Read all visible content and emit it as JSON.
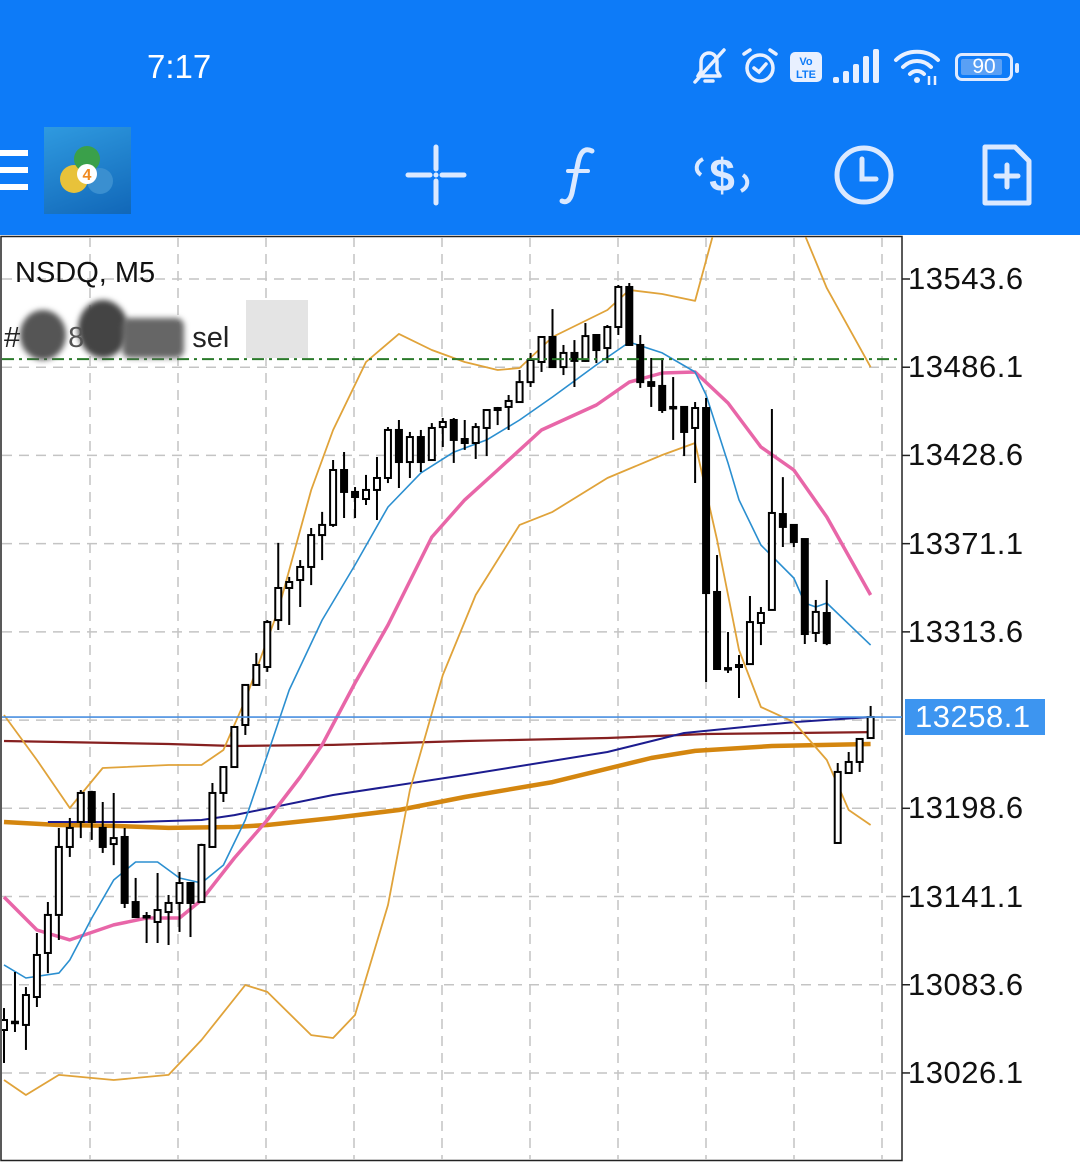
{
  "status_bar": {
    "time": "7:17",
    "icons": [
      "bell-off-icon",
      "alarm-icon",
      "volte-icon",
      "signal-icon",
      "wifi-icon"
    ],
    "battery": "90"
  },
  "toolbar": {
    "icons": [
      "menu-icon",
      "mt4-logo",
      "crosshair-icon",
      "indicators-f-icon",
      "trade-icon",
      "timeframe-clock-icon",
      "new-order-icon"
    ],
    "color": "#0d7bf8"
  },
  "chart": {
    "symbol_label": "NSDQ, M5",
    "order_label": {
      "hash": "#",
      "digit": "8",
      "type": "sel"
    }
  },
  "chart_data": {
    "type": "candlestick",
    "symbol": "NSDQ",
    "timeframe": "M5",
    "y_ticks": [
      "13543.6",
      "13486.1",
      "13428.6",
      "13371.1",
      "13313.6",
      "13198.6",
      "13141.1",
      "13083.6",
      "13026.1"
    ],
    "current_price": "13258.1",
    "order_line_price": 13491.4,
    "grid": true,
    "colors": {
      "bollinger": "#e0a33a",
      "ma_fast": "#2b8fd0",
      "ma_pink": "#e866a8",
      "ma_navy": "#1c1c8f",
      "ma_darkred": "#862020",
      "ma_orange": "#d4860f",
      "price_line": "#4a8fe0",
      "order_line": "#2a7a2a",
      "price_badge": "#3d95f0"
    },
    "candles": [
      [
        13054.1,
        13068.4,
        13032.6,
        13060.6
      ],
      [
        13058.7,
        13091.9,
        13052.8,
        13059.5
      ],
      [
        13057.4,
        13082.1,
        13041.1,
        13076.9
      ],
      [
        13075.6,
        13117.3,
        13069.1,
        13103.0
      ],
      [
        13104.3,
        13137.5,
        13091.2,
        13129.1
      ],
      [
        13129.1,
        13185.8,
        13112.8,
        13173.4
      ],
      [
        13173.4,
        13192.3,
        13166.9,
        13185.8
      ],
      [
        13189.7,
        13210.5,
        13179.2,
        13208.6
      ],
      [
        13209.2,
        13210.0,
        13178.0,
        13189.7
      ],
      [
        13185.8,
        13202.7,
        13169.5,
        13173.4
      ],
      [
        13175.3,
        13208.6,
        13161.6,
        13179.2
      ],
      [
        13179.9,
        13185.8,
        13133.6,
        13136.9
      ],
      [
        13137.5,
        13153.2,
        13127.1,
        13127.7
      ],
      [
        13127.7,
        13131.0,
        13110.8,
        13128.4
      ],
      [
        13124.5,
        13156.4,
        13110.8,
        13132.3
      ],
      [
        13131.0,
        13142.1,
        13109.5,
        13136.9
      ],
      [
        13136.9,
        13157.1,
        13118.0,
        13149.9
      ],
      [
        13149.9,
        13150.5,
        13114.7,
        13136.9
      ],
      [
        13137.5,
        13175.5,
        13137.0,
        13174.7
      ],
      [
        13173.4,
        13215.1,
        13172.7,
        13208.6
      ],
      [
        13208.6,
        13226.0,
        13202.7,
        13225.5
      ],
      [
        13225.5,
        13252.0,
        13225.0,
        13251.6
      ],
      [
        13252.9,
        13279.5,
        13246.4,
        13279.0
      ],
      [
        13279.0,
        13299.8,
        13278.5,
        13292.0
      ],
      [
        13290.7,
        13321.3,
        13287.5,
        13320.0
      ],
      [
        13321.3,
        13371.6,
        13314.8,
        13342.2
      ],
      [
        13342.2,
        13349.4,
        13318.1,
        13346.1
      ],
      [
        13347.4,
        13360.4,
        13329.8,
        13355.9
      ],
      [
        13355.9,
        13381.3,
        13344.1,
        13376.7
      ],
      [
        13376.7,
        13391.8,
        13360.4,
        13383.3
      ],
      [
        13383.3,
        13425.6,
        13382.0,
        13419.1
      ],
      [
        13419.1,
        13430.8,
        13387.8,
        13404.8
      ],
      [
        13404.8,
        13408.0,
        13387.8,
        13401.5
      ],
      [
        13400.2,
        13415.9,
        13396.3,
        13406.1
      ],
      [
        13406.1,
        13427.6,
        13386.5,
        13413.9
      ],
      [
        13413.9,
        13447.1,
        13410.6,
        13445.2
      ],
      [
        13445.2,
        13451.7,
        13407.4,
        13424.3
      ],
      [
        13424.3,
        13443.9,
        13413.9,
        13440.6
      ],
      [
        13440.6,
        13445.2,
        13417.8,
        13424.3
      ],
      [
        13425.6,
        13449.7,
        13425.0,
        13446.5
      ],
      [
        13447.1,
        13453.0,
        13434.1,
        13450.4
      ],
      [
        13451.7,
        13453.0,
        13423.7,
        13438.7
      ],
      [
        13439.3,
        13451.7,
        13432.2,
        13436.7
      ],
      [
        13436.7,
        13449.7,
        13426.3,
        13447.1
      ],
      [
        13446.5,
        13458.8,
        13428.2,
        13458.2
      ],
      [
        13459.5,
        13460.2,
        13448.4,
        13458.2
      ],
      [
        13460.2,
        13468.0,
        13445.2,
        13464.1
      ],
      [
        13463.4,
        13484.3,
        13462.8,
        13476.4
      ],
      [
        13476.4,
        13495.4,
        13473.2,
        13490.8
      ],
      [
        13489.5,
        13506.3,
        13483.0,
        13505.8
      ],
      [
        13505.8,
        13524.0,
        13485.6,
        13486.2
      ],
      [
        13486.2,
        13500.6,
        13481.0,
        13495.4
      ],
      [
        13495.4,
        13503.8,
        13473.2,
        13490.2
      ],
      [
        13490.2,
        13514.9,
        13489.6,
        13506.4
      ],
      [
        13507.1,
        13507.6,
        13488.8,
        13497.3
      ],
      [
        13498.6,
        13513.6,
        13488.8,
        13512.3
      ],
      [
        13512.3,
        13539.7,
        13507.1,
        13538.4
      ],
      [
        13538.4,
        13541.0,
        13500.0,
        13500.6
      ],
      [
        13500.6,
        13507.1,
        13472.6,
        13476.4
      ],
      [
        13476.4,
        13492.1,
        13460.2,
        13473.9
      ],
      [
        13473.9,
        13492.1,
        13456.3,
        13458.2
      ],
      [
        13460.2,
        13479.7,
        13438.7,
        13459.5
      ],
      [
        13460.2,
        13460.5,
        13428.2,
        13443.9
      ],
      [
        13446.5,
        13463.4,
        13410.6,
        13459.5
      ],
      [
        13459.5,
        13466.0,
        13280.9,
        13338.9
      ],
      [
        13339.6,
        13363.7,
        13289.0,
        13289.4
      ],
      [
        13289.4,
        13313.5,
        13286.8,
        13290.0
      ],
      [
        13290.7,
        13298.5,
        13270.5,
        13292.0
      ],
      [
        13292.6,
        13337.0,
        13292.3,
        13320.0
      ],
      [
        13319.4,
        13329.8,
        13305.0,
        13325.9
      ],
      [
        13327.9,
        13458.9,
        13327.5,
        13391.1
      ],
      [
        13390.4,
        13414.5,
        13368.9,
        13382.0
      ],
      [
        13383.3,
        13383.6,
        13368.9,
        13372.2
      ],
      [
        13374.1,
        13374.4,
        13305.7,
        13312.2
      ],
      [
        13312.9,
        13334.4,
        13307.0,
        13326.6
      ],
      [
        13325.9,
        13347.4,
        13305.0,
        13306.3
      ],
      [
        13176.0,
        13228.1,
        13175.7,
        13222.3
      ],
      [
        13221.6,
        13235.3,
        13221.3,
        13228.8
      ],
      [
        13228.8,
        13244.2,
        13222.3,
        13243.8
      ],
      [
        13244.4,
        13265.3,
        13244.0,
        13258.1
      ]
    ],
    "indicators": {
      "bollinger_upper": [
        [
          0,
          13259.4
        ],
        [
          3,
          13230.1
        ],
        [
          6,
          13198.8
        ],
        [
          9,
          13224.9
        ],
        [
          15,
          13226.8
        ],
        [
          18,
          13226.8
        ],
        [
          20,
          13236.6
        ],
        [
          22,
          13269.2
        ],
        [
          25,
          13327.9
        ],
        [
          28,
          13406.1
        ],
        [
          30,
          13445.2
        ],
        [
          33,
          13489.5
        ],
        [
          36,
          13507.8
        ],
        [
          39,
          13497.3
        ],
        [
          42,
          13489.5
        ],
        [
          45,
          13484.3
        ],
        [
          47,
          13485.6
        ],
        [
          50,
          13505.8
        ],
        [
          55,
          13523.4
        ],
        [
          57,
          13536.4
        ],
        [
          60,
          13533.8
        ],
        [
          63,
          13529.3
        ],
        [
          65,
          13582.1
        ],
        [
          66,
          13601.6
        ],
        [
          69,
          13627.7
        ],
        [
          72,
          13588.6
        ],
        [
          73,
          13572.3
        ],
        [
          75,
          13537.7
        ],
        [
          79,
          13486.2
        ]
      ],
      "bollinger_lower": [
        [
          0,
          13021.5
        ],
        [
          2,
          13011.7
        ],
        [
          5,
          13024.8
        ],
        [
          10,
          13021.5
        ],
        [
          15,
          13024.8
        ],
        [
          18,
          13047.6
        ],
        [
          22,
          13083.4
        ],
        [
          24,
          13078.9
        ],
        [
          28,
          13050.8
        ],
        [
          30,
          13048.9
        ],
        [
          32,
          13063.9
        ],
        [
          35,
          13135.6
        ],
        [
          37,
          13210.5
        ],
        [
          40,
          13285.5
        ],
        [
          43,
          13337.6
        ],
        [
          47,
          13383.3
        ],
        [
          50,
          13391.8
        ],
        [
          55,
          13413.9
        ],
        [
          60,
          13428.9
        ],
        [
          63,
          13436.7
        ],
        [
          65,
          13373.5
        ],
        [
          67,
          13301.8
        ],
        [
          69,
          13264.6
        ],
        [
          72,
          13254.8
        ],
        [
          75,
          13230.1
        ],
        [
          77,
          13197.5
        ],
        [
          79,
          13187.7
        ]
      ],
      "ma_fast": [
        [
          0,
          13096.5
        ],
        [
          2,
          13088.0
        ],
        [
          5,
          13091.2
        ],
        [
          6,
          13099.7
        ],
        [
          8,
          13127.1
        ],
        [
          10,
          13151.9
        ],
        [
          12,
          13163.6
        ],
        [
          14,
          13163.6
        ],
        [
          16,
          13153.2
        ],
        [
          18,
          13149.9
        ],
        [
          20,
          13161.6
        ],
        [
          22,
          13191.0
        ],
        [
          24,
          13233.3
        ],
        [
          26,
          13275.7
        ],
        [
          29,
          13321.3
        ],
        [
          32,
          13357.2
        ],
        [
          35,
          13395.0
        ],
        [
          38,
          13417.2
        ],
        [
          41,
          13430.8
        ],
        [
          44,
          13438.7
        ],
        [
          47,
          13451.7
        ],
        [
          50,
          13466.7
        ],
        [
          54,
          13487.6
        ],
        [
          57,
          13502.5
        ],
        [
          60,
          13495.4
        ],
        [
          63,
          13483.0
        ],
        [
          64,
          13468.0
        ],
        [
          66,
          13423.7
        ],
        [
          67,
          13399.6
        ],
        [
          69,
          13370.2
        ],
        [
          72,
          13348.7
        ],
        [
          73,
          13332.4
        ],
        [
          74,
          13329.8
        ],
        [
          75,
          13332.4
        ],
        [
          79,
          13305.0
        ]
      ],
      "ma_pink": [
        [
          0,
          13140.8
        ],
        [
          3,
          13119.3
        ],
        [
          6,
          13112.8
        ],
        [
          10,
          13122.6
        ],
        [
          13,
          13127.1
        ],
        [
          16,
          13127.1
        ],
        [
          18,
          13138.8
        ],
        [
          21,
          13166.2
        ],
        [
          24,
          13191.0
        ],
        [
          27,
          13219.0
        ],
        [
          29,
          13239.9
        ],
        [
          32,
          13280.3
        ],
        [
          35,
          13318.1
        ],
        [
          39,
          13375.4
        ],
        [
          42,
          13399.6
        ],
        [
          45,
          13419.1
        ],
        [
          49,
          13445.2
        ],
        [
          54,
          13461.5
        ],
        [
          57,
          13476.4
        ],
        [
          60,
          13482.3
        ],
        [
          63,
          13483.0
        ],
        [
          66,
          13462.8
        ],
        [
          69,
          13434.1
        ],
        [
          72,
          13419.1
        ],
        [
          75,
          13388.5
        ],
        [
          79,
          13337.6
        ]
      ],
      "ma_navy": [
        [
          4,
          13189.7
        ],
        [
          12,
          13189.7
        ],
        [
          18,
          13191.0
        ],
        [
          21,
          13194.2
        ],
        [
          30,
          13207.3
        ],
        [
          42,
          13220.3
        ],
        [
          55,
          13235.3
        ],
        [
          62,
          13247.7
        ],
        [
          72,
          13254.8
        ],
        [
          79,
          13258.1
        ]
      ],
      "ma_darkred": [
        [
          0,
          13242.5
        ],
        [
          15,
          13240.5
        ],
        [
          21,
          13239.2
        ],
        [
          30,
          13239.9
        ],
        [
          42,
          13242.5
        ],
        [
          55,
          13244.4
        ],
        [
          64,
          13247.0
        ],
        [
          79,
          13248.3
        ]
      ],
      "ma_orange": [
        [
          0,
          13189.7
        ],
        [
          5,
          13187.7
        ],
        [
          10,
          13187.1
        ],
        [
          15,
          13185.8
        ],
        [
          21,
          13186.4
        ],
        [
          24,
          13187.7
        ],
        [
          30,
          13192.3
        ],
        [
          36,
          13197.5
        ],
        [
          42,
          13206.0
        ],
        [
          50,
          13215.7
        ],
        [
          59,
          13231.4
        ],
        [
          63,
          13236.0
        ],
        [
          70,
          13239.2
        ],
        [
          79,
          13240.5
        ]
      ]
    }
  }
}
